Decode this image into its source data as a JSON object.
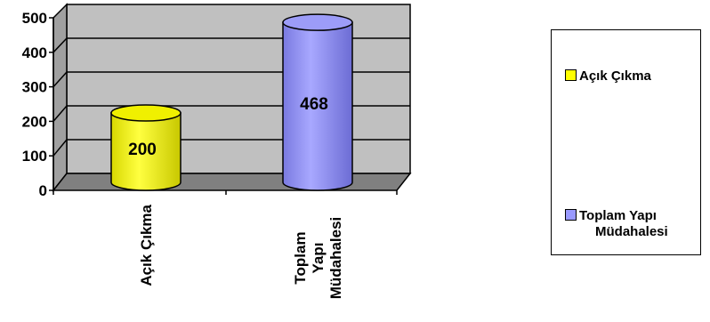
{
  "chart_data": {
    "type": "bar",
    "categories": [
      "Açık Çıkma",
      "Toplam Yapı Müdahalesi"
    ],
    "category_label_lines": [
      [
        "Açık Çıkma"
      ],
      [
        "Toplam",
        "Yapı",
        "Müdahalesi"
      ]
    ],
    "values": [
      200,
      468
    ],
    "data_labels": [
      "200",
      "468"
    ],
    "ylim": [
      0,
      500
    ],
    "yticks": [
      "0",
      "100",
      "200",
      "300",
      "400",
      "500"
    ],
    "colors": [
      "#ffff00",
      "#9999ff"
    ],
    "grid": true,
    "legend_position": "right",
    "legend": [
      {
        "label": "Açık Çıkma",
        "color": "#ffff00"
      },
      {
        "label_line1": "Toplam Yapı",
        "label_line2": "Müdahalesi",
        "color": "#9999ff"
      }
    ],
    "title": "",
    "xlabel": "",
    "ylabel": ""
  }
}
